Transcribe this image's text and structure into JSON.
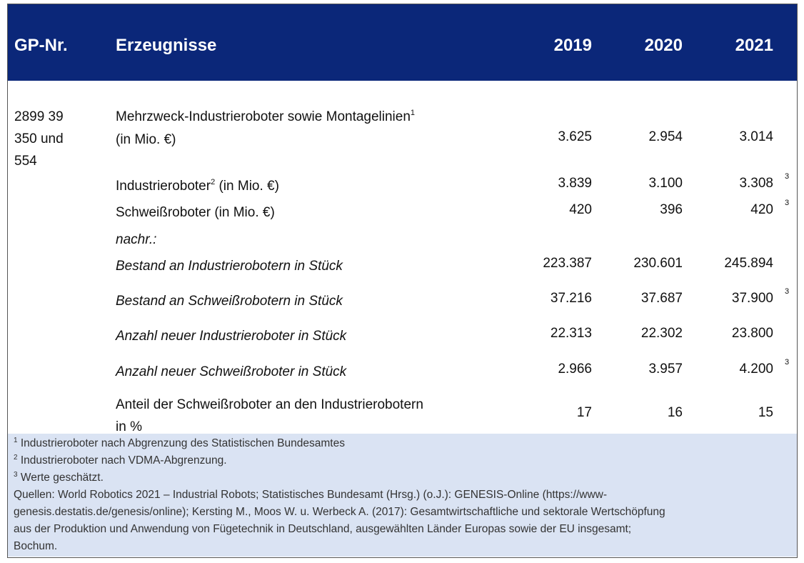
{
  "header": {
    "columns": [
      "GP-Nr.",
      "Erzeugnisse",
      "2019",
      "2020",
      "2021"
    ]
  },
  "table": {
    "rows": [
      {
        "gp": "2899 39 350 und 554",
        "label": [
          "Mehrzweck-Industrieroboter sowie Montagelinien"
        ],
        "ref": "1",
        "unit": "(in Mio. €)",
        "unit_newline": true,
        "values": [
          "3.625",
          "2.954",
          "3.014"
        ]
      },
      {
        "label": [
          "Industrieroboter"
        ],
        "ref": "2",
        "unit": " (in Mio. €)",
        "values": [
          "3.839",
          "3.100",
          "3.308"
        ],
        "note": "3"
      },
      {
        "label": [
          "Schweißroboter (in Mio. €)"
        ],
        "values": [
          "420",
          "396",
          "420"
        ],
        "note": "3"
      },
      {
        "label": [
          "nachr.:"
        ],
        "italic": true
      },
      {
        "label": [
          "Bestand an Industrierobotern in Stück"
        ],
        "italic": true,
        "values": [
          "223.387",
          "230.601",
          "245.894"
        ]
      },
      {
        "label": [
          "Bestand an Schweißrobotern in Stück"
        ],
        "italic": true,
        "values": [
          "37.216",
          "37.687",
          "37.900"
        ],
        "note": "3"
      },
      {
        "label": [
          "Anzahl neuer Industrieroboter in Stück"
        ],
        "italic": true,
        "values": [
          "22.313",
          "22.302",
          "23.800"
        ]
      },
      {
        "label": [
          "Anzahl neuer Schweißroboter in Stück"
        ],
        "italic": true,
        "values": [
          "2.966",
          "3.957",
          "4.200"
        ],
        "note": "3"
      },
      {
        "label": [
          "Anteil der Schweißroboter an den Industrierobotern",
          "in %"
        ],
        "values": [
          "17",
          "16",
          "15"
        ]
      }
    ]
  },
  "footer": {
    "footnotes": [
      {
        "mark": "1",
        "text": " Industrieroboter nach Abgrenzung des Statistischen Bundesamtes"
      },
      {
        "mark": "2",
        "text": " Industrieroboter nach VDMA-Abgrenzung."
      },
      {
        "mark": "3",
        "text": " Werte geschätzt."
      }
    ],
    "sources": [
      "Quellen: World Robotics 2021 – Industrial Robots; Statistisches Bundesamt (Hrsg.) (o.J.): GENESIS-Online (https://www-",
      "genesis.destatis.de/genesis/online); Kersting M., Moos W. u. Werbeck A. (2017): Gesamtwirtschaftliche und sektorale Wertschöpfung",
      "aus der Produktion und Anwendung von Fügetechnik in Deutschland, ausgewählten Länder Europas sowie der EU insgesamt;",
      "Bochum."
    ]
  }
}
